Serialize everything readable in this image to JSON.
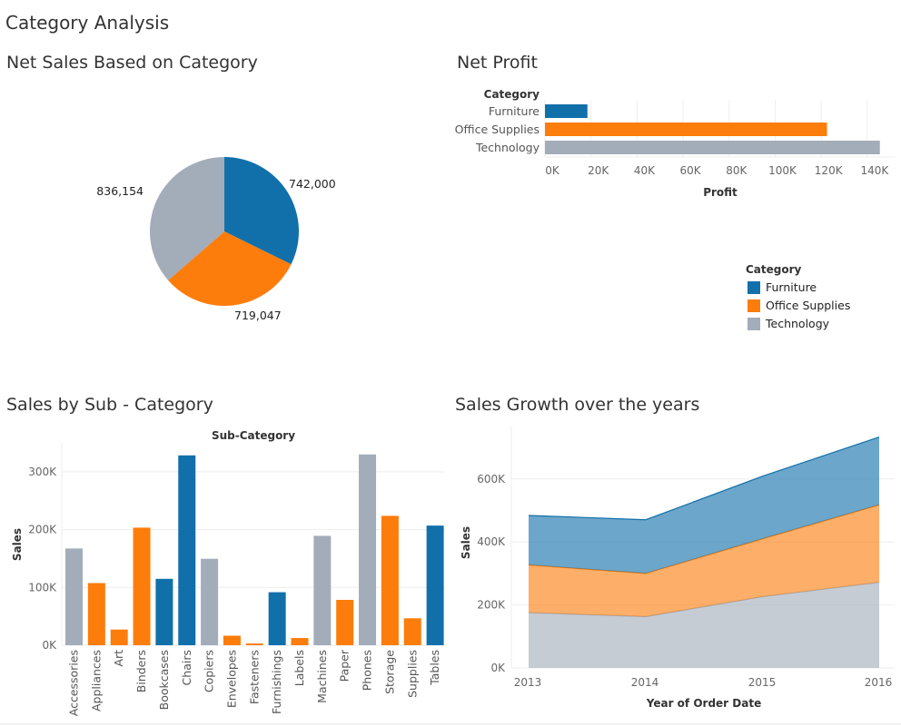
{
  "dashboard_title": "Category Analysis",
  "colors": {
    "Furniture": "#1170aa",
    "Office Supplies": "#fc7d0b",
    "Technology": "#a3acb9"
  },
  "legend": {
    "title": "Category",
    "items": [
      "Furniture",
      "Office Supplies",
      "Technology"
    ]
  },
  "chart_data": [
    {
      "type": "pie",
      "title": "Net Sales Based on Category",
      "categories": [
        "Furniture",
        "Office Supplies",
        "Technology"
      ],
      "values": [
        742000,
        719047,
        836154
      ],
      "labels": [
        "742,000",
        "719,047",
        "836,154"
      ]
    },
    {
      "type": "bar",
      "orientation": "horizontal",
      "title": "Net Profit",
      "category_header": "Category",
      "categories": [
        "Furniture",
        "Office Supplies",
        "Technology"
      ],
      "values": [
        18451,
        122491,
        145455
      ],
      "xlabel": "Profit",
      "xlim": [
        0,
        150000
      ],
      "ticks": [
        "0K",
        "20K",
        "40K",
        "60K",
        "80K",
        "100K",
        "120K",
        "140K"
      ],
      "grid": true
    },
    {
      "type": "bar",
      "title": "Sales by Sub - Category",
      "header": "Sub-Category",
      "ylabel": "Sales",
      "ylim": [
        0,
        340000
      ],
      "ticks": [
        "0K",
        "100K",
        "200K",
        "300K"
      ],
      "categories": [
        "Accessories",
        "Appliances",
        "Art",
        "Binders",
        "Bookcases",
        "Chairs",
        "Copiers",
        "Envelopes",
        "Fasteners",
        "Furnishings",
        "Labels",
        "Machines",
        "Paper",
        "Phones",
        "Storage",
        "Supplies",
        "Tables"
      ],
      "values": [
        167380,
        107532,
        27119,
        203413,
        114880,
        328449,
        149528,
        16476,
        3024,
        91705,
        12486,
        189239,
        78479,
        330007,
        223844,
        46674,
        206966
      ],
      "category_group": [
        "Technology",
        "Office Supplies",
        "Office Supplies",
        "Office Supplies",
        "Furniture",
        "Furniture",
        "Technology",
        "Office Supplies",
        "Office Supplies",
        "Furniture",
        "Office Supplies",
        "Technology",
        "Office Supplies",
        "Technology",
        "Office Supplies",
        "Office Supplies",
        "Furniture"
      ],
      "grid": true
    },
    {
      "type": "area",
      "stacked": true,
      "title": "Sales Growth over the years",
      "xlabel": "Year of Order Date",
      "ylabel": "Sales",
      "x": [
        "2013",
        "2014",
        "2015",
        "2016"
      ],
      "ylim": [
        0,
        740000
      ],
      "ticks": [
        "0K",
        "200K",
        "400K",
        "600K"
      ],
      "series": [
        {
          "name": "Technology",
          "values": [
            175278,
            162780,
            226364,
            271731
          ]
        },
        {
          "name": "Office Supplies",
          "values": [
            151776,
            137233,
            183940,
            246097
          ]
        },
        {
          "name": "Furniture",
          "values": [
            157193,
            170518,
            198901,
            215387
          ]
        }
      ],
      "grid": true
    }
  ]
}
